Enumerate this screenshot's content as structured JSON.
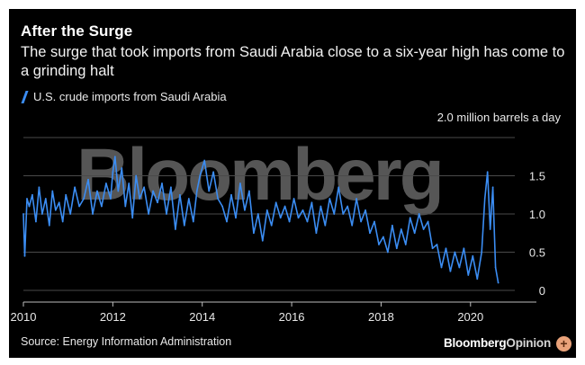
{
  "card": {
    "title": "After the Surge",
    "subtitle": "The surge that took imports from Saudi Arabia close to a six-year high has come to a grinding halt",
    "source": "Source: Energy Information Administration",
    "brand_main": "Bloomberg",
    "brand_suffix": "Opinion",
    "watermark": "Bloomberg",
    "fab_icon": "+"
  },
  "colors": {
    "background": "#000000",
    "series": "#3b8df3",
    "grid": "#4a4a4a"
  },
  "chart_data": {
    "type": "line",
    "title": "After the Surge",
    "subtitle": "The surge that took imports from Saudi Arabia close to a six-year high has come to a grinding halt",
    "unit_label": "2.0 million barrels a day",
    "xlabel": "",
    "ylabel": "million barrels a day",
    "xlim": [
      2010,
      2020.95
    ],
    "ylim": [
      0,
      2.0
    ],
    "y_ticks": [
      0,
      0.5,
      1.0,
      1.5
    ],
    "y_tick_labels": [
      "0",
      "0.5",
      "1.0",
      "1.5"
    ],
    "x_ticks": [
      2010,
      2012,
      2014,
      2016,
      2018,
      2020
    ],
    "x_tick_labels": [
      "2010",
      "2012",
      "2014",
      "2016",
      "2018",
      "2020"
    ],
    "grid": true,
    "legend_position": "top-left",
    "series": [
      {
        "name": "U.S. crude imports from Saudi Arabia",
        "x": [
          2010.0,
          2010.03,
          2010.08,
          2010.13,
          2010.2,
          2010.28,
          2010.35,
          2010.42,
          2010.5,
          2010.58,
          2010.65,
          2010.72,
          2010.8,
          2010.88,
          2010.95,
          2011.05,
          2011.15,
          2011.25,
          2011.35,
          2011.45,
          2011.55,
          2011.65,
          2011.75,
          2011.85,
          2011.95,
          2012.0,
          2012.05,
          2012.12,
          2012.2,
          2012.28,
          2012.36,
          2012.44,
          2012.52,
          2012.6,
          2012.7,
          2012.8,
          2012.9,
          2013.0,
          2013.1,
          2013.2,
          2013.3,
          2013.4,
          2013.5,
          2013.6,
          2013.7,
          2013.8,
          2013.88,
          2013.95,
          2014.05,
          2014.15,
          2014.25,
          2014.35,
          2014.45,
          2014.55,
          2014.65,
          2014.75,
          2014.85,
          2014.95,
          2015.05,
          2015.15,
          2015.25,
          2015.35,
          2015.45,
          2015.55,
          2015.65,
          2015.75,
          2015.85,
          2015.95,
          2016.05,
          2016.15,
          2016.25,
          2016.35,
          2016.45,
          2016.55,
          2016.65,
          2016.75,
          2016.85,
          2016.95,
          2017.05,
          2017.15,
          2017.25,
          2017.35,
          2017.45,
          2017.55,
          2017.65,
          2017.75,
          2017.85,
          2017.95,
          2018.05,
          2018.15,
          2018.25,
          2018.35,
          2018.45,
          2018.55,
          2018.65,
          2018.75,
          2018.85,
          2018.95,
          2019.05,
          2019.15,
          2019.25,
          2019.35,
          2019.45,
          2019.55,
          2019.65,
          2019.75,
          2019.85,
          2019.95,
          2020.05,
          2020.15,
          2020.25,
          2020.32,
          2020.38,
          2020.44,
          2020.5,
          2020.56,
          2020.62
        ],
        "values": [
          1.0,
          0.45,
          1.2,
          1.1,
          1.25,
          0.9,
          1.35,
          1.0,
          1.2,
          0.85,
          1.3,
          1.05,
          1.15,
          0.9,
          1.25,
          1.0,
          1.35,
          1.1,
          1.2,
          1.45,
          1.0,
          1.3,
          1.1,
          1.4,
          1.2,
          1.55,
          1.75,
          1.3,
          1.6,
          1.1,
          1.4,
          0.95,
          1.5,
          1.2,
          1.35,
          1.0,
          1.3,
          1.15,
          1.4,
          1.0,
          1.35,
          0.8,
          1.25,
          0.85,
          1.2,
          0.9,
          1.3,
          1.5,
          1.7,
          1.3,
          1.55,
          1.2,
          1.1,
          0.9,
          1.25,
          0.95,
          1.4,
          1.05,
          1.3,
          0.75,
          1.0,
          0.65,
          1.05,
          0.85,
          1.15,
          0.95,
          1.1,
          0.9,
          1.2,
          0.95,
          1.05,
          0.9,
          1.15,
          0.75,
          1.1,
          0.85,
          1.2,
          1.0,
          1.35,
          1.0,
          1.1,
          0.85,
          1.2,
          0.9,
          1.05,
          0.75,
          0.9,
          0.6,
          0.7,
          0.5,
          0.85,
          0.55,
          0.8,
          0.6,
          0.95,
          0.75,
          1.0,
          0.8,
          0.9,
          0.55,
          0.6,
          0.3,
          0.55,
          0.25,
          0.5,
          0.3,
          0.55,
          0.2,
          0.45,
          0.15,
          0.5,
          1.2,
          1.55,
          0.8,
          1.35,
          0.3,
          0.1
        ]
      }
    ]
  }
}
